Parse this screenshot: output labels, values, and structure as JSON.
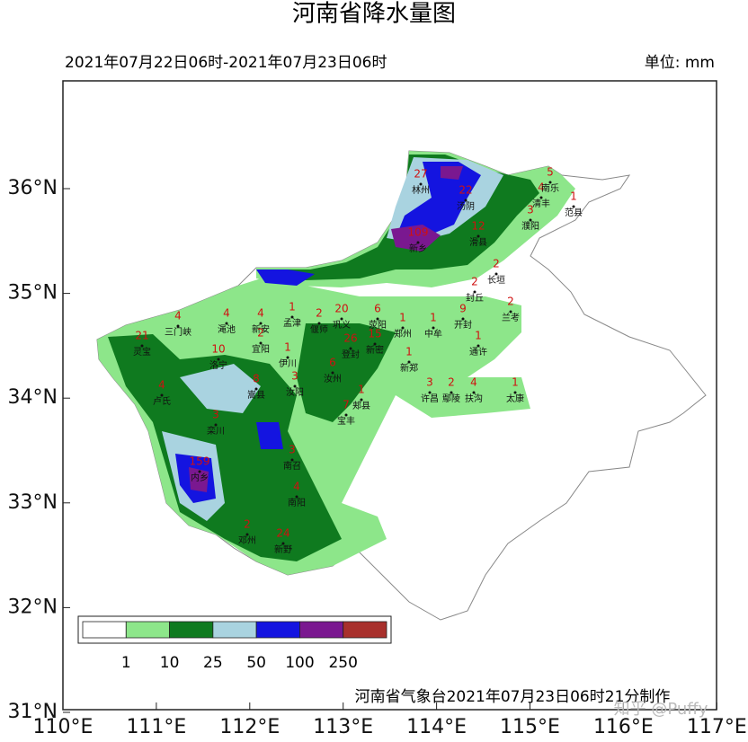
{
  "title": "河南省降水量图",
  "period": "2021年07月22日06时-2021年07月23日06时",
  "unit": "单位: mm",
  "longitude_labels": [
    "110°E",
    "111°E",
    "112°E",
    "113°E",
    "114°E",
    "115°E",
    "116°E",
    "117°E"
  ],
  "latitude_labels": [
    "36°N",
    "35°N",
    "34°N",
    "33°N",
    "32°N",
    "31°N"
  ],
  "legend": {
    "labels": [
      "1",
      "10",
      "25",
      "50",
      "100",
      "250"
    ],
    "colors": [
      "#ffffff",
      "#8de68a",
      "#0f7a1f",
      "#a9d3e0",
      "#1414e0",
      "#7a1890",
      "#a8302c"
    ]
  },
  "stations": [
    {
      "name": "林州",
      "value": 27
    },
    {
      "name": "汤阴",
      "value": 22
    },
    {
      "name": "濮阳",
      "value": 3
    },
    {
      "name": "范县",
      "value": 1
    },
    {
      "name": "清丰",
      "value": 4
    },
    {
      "name": "南乐",
      "value": 5
    },
    {
      "name": "新乡",
      "value": 109
    },
    {
      "name": "滑县",
      "value": 12
    },
    {
      "name": "长垣",
      "value": 2
    },
    {
      "name": "封丘",
      "value": 2
    },
    {
      "name": "孟津",
      "value": 1
    },
    {
      "name": "偃师",
      "value": 2
    },
    {
      "name": "巩义",
      "value": 20
    },
    {
      "name": "荥阳",
      "value": 6
    },
    {
      "name": "郑州",
      "value": 1
    },
    {
      "name": "中牟",
      "value": 1
    },
    {
      "name": "开封",
      "value": 9
    },
    {
      "name": "兰考",
      "value": 2
    },
    {
      "name": "通许",
      "value": 1
    },
    {
      "name": "三门峡",
      "value": 4
    },
    {
      "name": "渑池",
      "value": 4
    },
    {
      "name": "新安",
      "value": 4
    },
    {
      "name": "宜阳",
      "value": 2
    },
    {
      "name": "伊川",
      "value": 1
    },
    {
      "name": "洛宁",
      "value": 10
    },
    {
      "name": "灵宝",
      "value": 21
    },
    {
      "name": "卢氏",
      "value": 4
    },
    {
      "name": "嵩县",
      "value": 8
    },
    {
      "name": "汝阳",
      "value": 3
    },
    {
      "name": "登封",
      "value": 26
    },
    {
      "name": "新密",
      "value": 15
    },
    {
      "name": "汝州",
      "value": 6
    },
    {
      "name": "新郑",
      "value": 1
    },
    {
      "name": "郏县",
      "value": 1
    },
    {
      "name": "宝丰",
      "value": 7
    },
    {
      "name": "许昌",
      "value": 3
    },
    {
      "name": "鄢陵",
      "value": 2
    },
    {
      "name": "扶沟",
      "value": 4
    },
    {
      "name": "太康",
      "value": 1
    },
    {
      "name": "栾川",
      "value": 3
    },
    {
      "name": "南召",
      "value": 3
    },
    {
      "name": "内乡",
      "value": 159
    },
    {
      "name": "南阳",
      "value": 4
    },
    {
      "name": "邓州",
      "value": 2
    },
    {
      "name": "新野",
      "value": 24
    }
  ],
  "credit": "河南省气象台2021年07月23日06时21分制作",
  "watermark": "知乎 @Puffy"
}
